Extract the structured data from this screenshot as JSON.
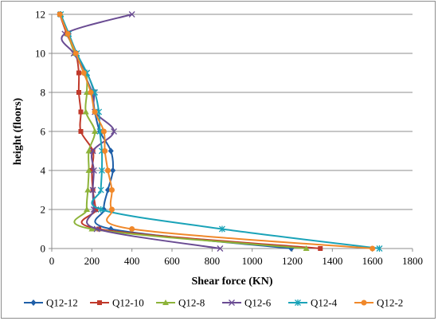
{
  "chart_data": {
    "type": "line",
    "title": "",
    "xlabel": "Shear force (KN)",
    "ylabel": "height (floors)",
    "xlim": [
      0,
      1800
    ],
    "ylim": [
      0,
      12
    ],
    "xticks": [
      0,
      200,
      400,
      600,
      800,
      1000,
      1200,
      1400,
      1600,
      1800
    ],
    "yticks": [
      0,
      2,
      4,
      6,
      8,
      10,
      12
    ],
    "grid": "horizontal",
    "legend_position": "bottom",
    "series": [
      {
        "name": "Q12-12",
        "color": "#1f5fa8",
        "marker": "diamond",
        "points": [
          [
            1195,
            0
          ],
          [
            295,
            1
          ],
          [
            260,
            2
          ],
          [
            280,
            3
          ],
          [
            305,
            4
          ],
          [
            295,
            5
          ],
          [
            240,
            6
          ],
          [
            215,
            7
          ],
          [
            200,
            8
          ],
          [
            160,
            9
          ],
          [
            120,
            10
          ],
          [
            85,
            11
          ],
          [
            40,
            12
          ]
        ]
      },
      {
        "name": "Q12-10",
        "color": "#c0392b",
        "marker": "square",
        "points": [
          [
            1340,
            0
          ],
          [
            235,
            1
          ],
          [
            220,
            2
          ],
          [
            205,
            3
          ],
          [
            200,
            4
          ],
          [
            205,
            5
          ],
          [
            145,
            6
          ],
          [
            145,
            7
          ],
          [
            135,
            8
          ],
          [
            135,
            9
          ],
          [
            120,
            10
          ],
          [
            75,
            11
          ],
          [
            40,
            12
          ]
        ]
      },
      {
        "name": "Q12-8",
        "color": "#8db33a",
        "marker": "triangle",
        "points": [
          [
            1270,
            0
          ],
          [
            200,
            1
          ],
          [
            175,
            2
          ],
          [
            180,
            3
          ],
          [
            185,
            4
          ],
          [
            185,
            5
          ],
          [
            215,
            6
          ],
          [
            170,
            7
          ],
          [
            175,
            8
          ],
          [
            170,
            9
          ],
          [
            115,
            10
          ],
          [
            80,
            11
          ],
          [
            45,
            12
          ]
        ]
      },
      {
        "name": "Q12-6",
        "color": "#6a4c93",
        "marker": "x",
        "points": [
          [
            840,
            0
          ],
          [
            225,
            1
          ],
          [
            210,
            2
          ],
          [
            205,
            3
          ],
          [
            210,
            4
          ],
          [
            205,
            5
          ],
          [
            310,
            6
          ],
          [
            215,
            7
          ],
          [
            210,
            8
          ],
          [
            175,
            9
          ],
          [
            110,
            10
          ],
          [
            65,
            11
          ],
          [
            400,
            12
          ]
        ]
      },
      {
        "name": "Q12-4",
        "color": "#1aa3b8",
        "marker": "star",
        "points": [
          [
            1635,
            0
          ],
          [
            850,
            1
          ],
          [
            245,
            2
          ],
          [
            245,
            3
          ],
          [
            250,
            4
          ],
          [
            250,
            5
          ],
          [
            240,
            6
          ],
          [
            235,
            7
          ],
          [
            215,
            8
          ],
          [
            175,
            9
          ],
          [
            125,
            10
          ],
          [
            85,
            11
          ],
          [
            45,
            12
          ]
        ]
      },
      {
        "name": "Q12-2",
        "color": "#f0882a",
        "marker": "circle",
        "points": [
          [
            1600,
            0
          ],
          [
            400,
            1
          ],
          [
            300,
            2
          ],
          [
            300,
            3
          ],
          [
            280,
            4
          ],
          [
            265,
            5
          ],
          [
            260,
            6
          ],
          [
            215,
            7
          ],
          [
            195,
            8
          ],
          [
            160,
            9
          ],
          [
            120,
            10
          ],
          [
            80,
            11
          ],
          [
            40,
            12
          ]
        ]
      }
    ]
  }
}
